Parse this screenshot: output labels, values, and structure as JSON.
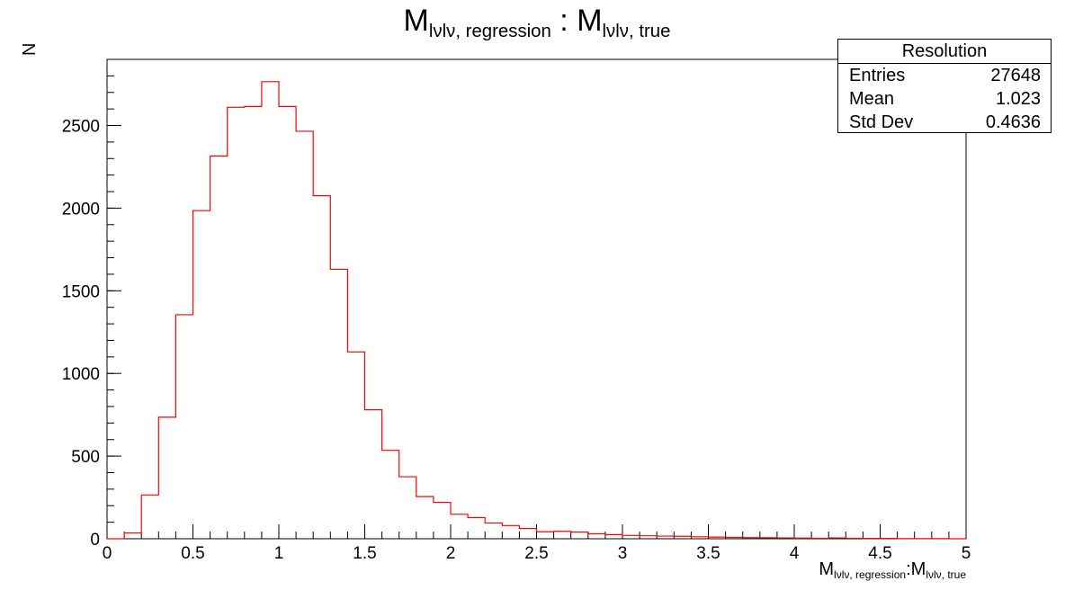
{
  "chart_data": {
    "type": "bar",
    "title": "M<sub>lνlν, regression</sub> : M<sub>lνlν, true</sub>",
    "title_main_a": "M",
    "title_sub_a": "lνlν, regression",
    "title_sep": " : ",
    "title_main_b": "M",
    "title_sub_b": "lνlν, true",
    "xlabel_main_a": "M",
    "xlabel_sub_a": "lνlν, regression",
    "xlabel_sep": ":",
    "xlabel_main_b": "M",
    "xlabel_sub_b": "lνlν, true",
    "ylabel": "N",
    "xlim": [
      0,
      5
    ],
    "ylim": [
      0,
      2900
    ],
    "bin_width": 0.1,
    "bin_edges_start": 0.0,
    "values": [
      0,
      35,
      265,
      735,
      1355,
      1985,
      2315,
      2610,
      2615,
      2765,
      2615,
      2465,
      2075,
      1630,
      1130,
      780,
      535,
      375,
      255,
      220,
      148,
      128,
      95,
      80,
      62,
      42,
      45,
      40,
      30,
      25,
      20,
      18,
      16,
      15,
      12,
      10,
      8,
      7,
      6,
      5,
      4,
      3,
      5,
      3,
      2,
      2,
      1,
      1,
      1,
      0
    ],
    "xticks": [
      "0",
      "0.5",
      "1",
      "1.5",
      "2",
      "2.5",
      "3",
      "3.5",
      "4",
      "4.5",
      "5"
    ],
    "yticks": [
      "0",
      "500",
      "1000",
      "1500",
      "2000",
      "2500"
    ],
    "line_color": "#ff0000",
    "legend_placement": "top-right"
  },
  "stats": {
    "title": "Resolution",
    "entries_label": "Entries",
    "entries_value": "27648",
    "mean_label": "Mean",
    "mean_value": "1.023",
    "std_label": "Std Dev",
    "std_value": "0.4636"
  }
}
